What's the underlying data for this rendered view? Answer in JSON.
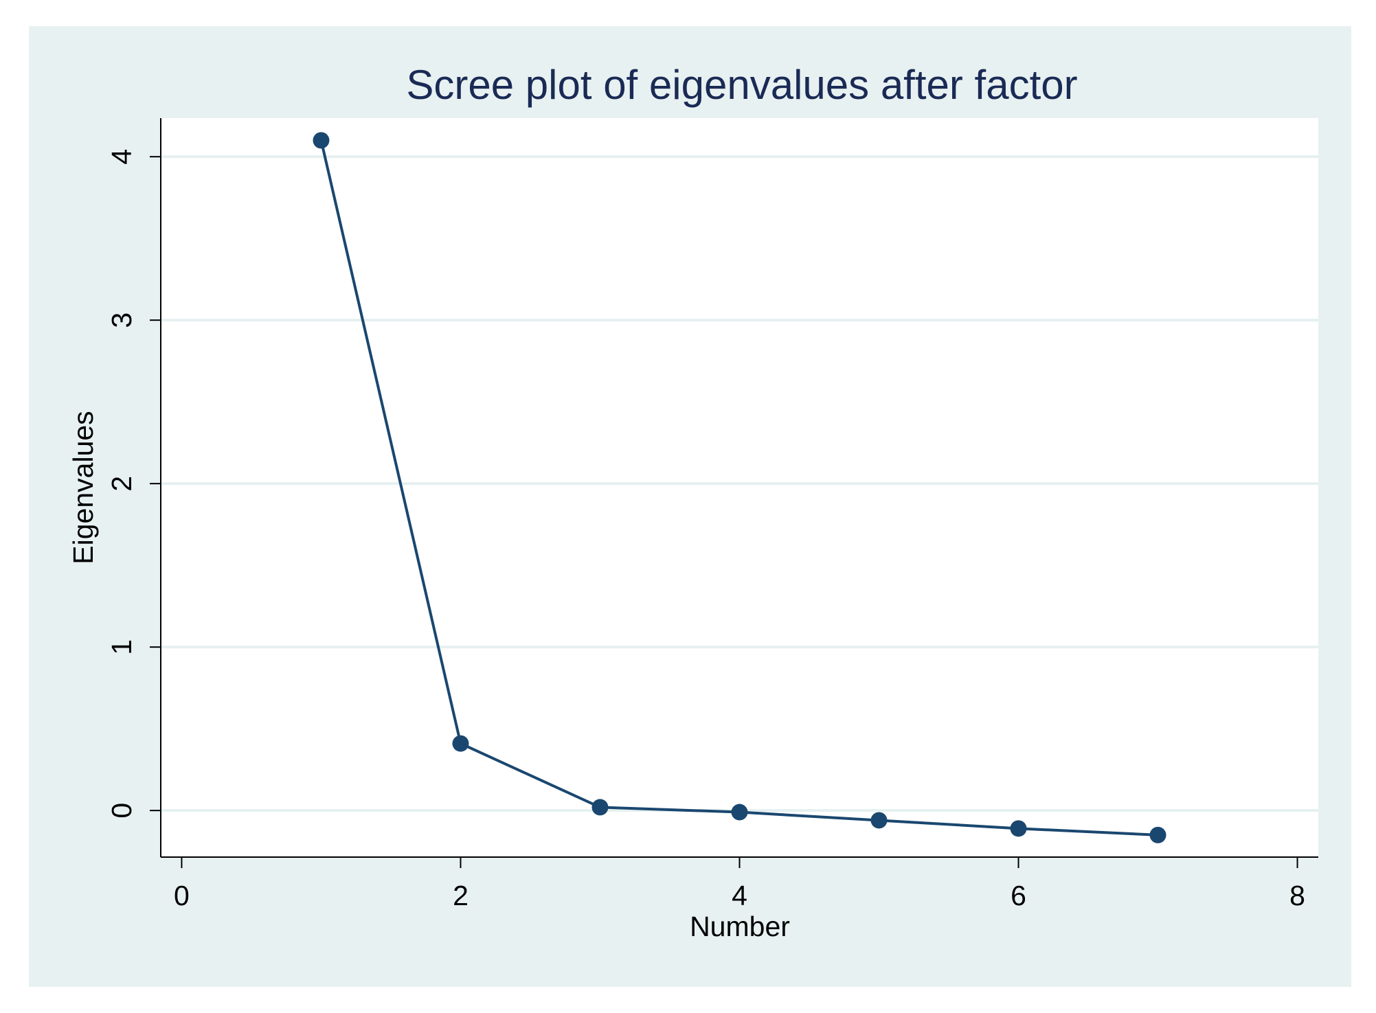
{
  "chart_data": {
    "type": "line",
    "title": "Scree plot of eigenvalues after factor",
    "x_label": "Number",
    "y_label": "Eigenvalues",
    "x": [
      1,
      2,
      3,
      4,
      5,
      6,
      7
    ],
    "series": [
      {
        "color": "#1a476f",
        "values": [
          4.1,
          0.41,
          0.02,
          -0.01,
          -0.06,
          -0.11,
          -0.15
        ]
      }
    ],
    "xlim": [
      -0.15,
      8.15
    ],
    "xticks": [
      0,
      2,
      4,
      6,
      8
    ],
    "ylim": [
      -0.285,
      4.236
    ],
    "yticks": [
      0,
      1,
      2,
      3,
      4
    ],
    "grid": true
  }
}
